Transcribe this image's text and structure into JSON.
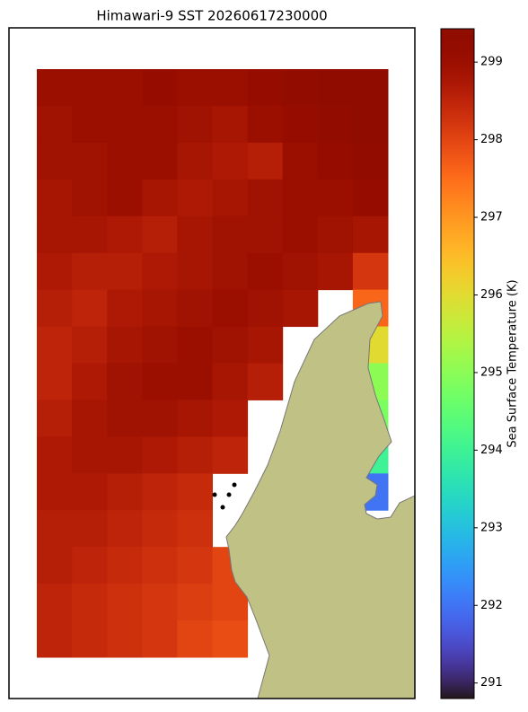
{
  "chart_data": {
    "type": "heatmap",
    "title": "Himawari-9 SST 20260617230000",
    "colorbar_label": "Sea Surface Temperature (K)",
    "colormap": "turbo",
    "clim": [
      290.8,
      299.43
    ],
    "cticks": [
      291,
      292,
      293,
      294,
      295,
      296,
      297,
      298,
      299
    ],
    "grid": [
      [
        299.0,
        299.0,
        299.0,
        299.1,
        299.0,
        299.0,
        299.1,
        299.2,
        299.3,
        299.3
      ],
      [
        298.9,
        299.0,
        299.0,
        299.0,
        298.9,
        298.8,
        299.0,
        299.1,
        299.2,
        299.3
      ],
      [
        298.9,
        298.9,
        299.0,
        299.0,
        298.8,
        298.7,
        298.6,
        299.0,
        299.1,
        299.2
      ],
      [
        298.8,
        298.9,
        299.0,
        298.8,
        298.7,
        298.8,
        298.9,
        299.0,
        299.0,
        299.1
      ],
      [
        298.8,
        298.8,
        298.7,
        298.6,
        298.8,
        298.9,
        298.9,
        299.0,
        298.9,
        298.8
      ],
      [
        298.7,
        298.6,
        298.6,
        298.7,
        298.8,
        298.9,
        299.0,
        298.9,
        298.8,
        298.2
      ],
      [
        298.6,
        298.5,
        298.7,
        298.8,
        298.9,
        299.0,
        298.9,
        298.8,
        null,
        297.6
      ],
      [
        298.5,
        298.6,
        298.8,
        298.9,
        299.0,
        298.9,
        298.8,
        null,
        null,
        296.0
      ],
      [
        298.5,
        298.7,
        298.9,
        299.0,
        299.0,
        298.8,
        298.6,
        null,
        null,
        295.0
      ],
      [
        298.6,
        298.8,
        298.9,
        298.9,
        298.8,
        298.7,
        null,
        null,
        null,
        294.8
      ],
      [
        298.7,
        298.8,
        298.8,
        298.7,
        298.6,
        298.5,
        null,
        null,
        null,
        294.0
      ],
      [
        298.7,
        298.7,
        298.6,
        298.5,
        298.4,
        null,
        null,
        null,
        null,
        292.0
      ],
      [
        298.6,
        298.6,
        298.5,
        298.4,
        298.3,
        null,
        null,
        null,
        null,
        null
      ],
      [
        298.6,
        298.5,
        298.4,
        298.3,
        298.2,
        298.0,
        null,
        null,
        null,
        null
      ],
      [
        298.5,
        298.4,
        298.3,
        298.2,
        298.1,
        298.0,
        null,
        null,
        null,
        null
      ],
      [
        298.5,
        298.4,
        298.3,
        298.2,
        298.0,
        297.9,
        null,
        null,
        null,
        null
      ]
    ]
  }
}
